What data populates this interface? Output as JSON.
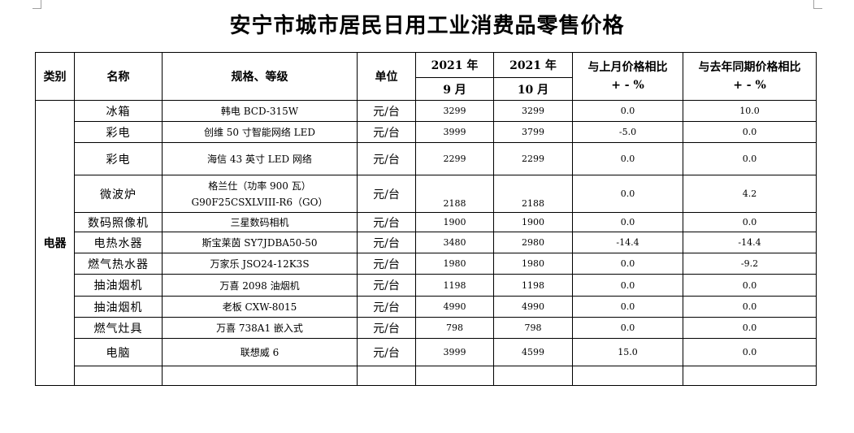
{
  "title": "安宁市城市居民日用工业消费品零售价格",
  "headers": {
    "category": "类别",
    "name": "名称",
    "spec": "规格、等级",
    "unit": "单位",
    "prev_year": "2021 年",
    "prev_month": "9 月",
    "cur_year": "2021 年",
    "cur_month": "10 月",
    "mom_l1": "与上月价格相比",
    "mom_l2": "+ - %",
    "yoy_l1": "与去年同期价格相比",
    "yoy_l2": "+ - %"
  },
  "category": "电器",
  "rows": [
    {
      "name": "冰箱",
      "spec": "韩电 BCD-315W",
      "spec2": "",
      "unit": "元/台",
      "prev": "3299",
      "cur": "3299",
      "mom": "0.0",
      "yoy": "10.0"
    },
    {
      "name": "彩电",
      "spec": "创维 50 寸智能网络 LED",
      "spec2": "",
      "unit": "元/台",
      "prev": "3999",
      "cur": "3799",
      "mom": "-5.0",
      "yoy": "0.0"
    },
    {
      "name": "彩电",
      "spec": "海信 43 英寸 LED 网络",
      "spec2": "",
      "unit": "元/台",
      "prev": "2299",
      "cur": "2299",
      "mom": "0.0",
      "yoy": "0.0"
    },
    {
      "name": "微波炉",
      "spec": "格兰仕（功率 900 瓦）",
      "spec2": "G90F25CSXLVIII-R6（GO）",
      "unit": "元/台",
      "prev": "2188",
      "cur": "2188",
      "mom": "0.0",
      "yoy": "4.2"
    },
    {
      "name": "数码照像机",
      "spec": "三星数码相机",
      "spec2": "",
      "unit": "元/台",
      "prev": "1900",
      "cur": "1900",
      "mom": "0.0",
      "yoy": "0.0"
    },
    {
      "name": "电热水器",
      "spec": "斯宝莱茵 SY7JDBA50-50",
      "spec2": "",
      "unit": "元/台",
      "prev": "3480",
      "cur": "2980",
      "mom": "-14.4",
      "yoy": "-14.4"
    },
    {
      "name": "燃气热水器",
      "spec": "万家乐 JSO24-12K3S",
      "spec2": "",
      "unit": "元/台",
      "prev": "1980",
      "cur": "1980",
      "mom": "0.0",
      "yoy": "-9.2"
    },
    {
      "name": "抽油烟机",
      "spec": "万喜 2098 油烟机",
      "spec2": "",
      "unit": "元/台",
      "prev": "1198",
      "cur": "1198",
      "mom": "0.0",
      "yoy": "0.0"
    },
    {
      "name": "抽油烟机",
      "spec": "老板 CXW-8015",
      "spec2": "",
      "unit": "元/台",
      "prev": "4990",
      "cur": "4990",
      "mom": "0.0",
      "yoy": "0.0"
    },
    {
      "name": "燃气灶具",
      "spec": "万喜 738A1 嵌入式",
      "spec2": "",
      "unit": "元/台",
      "prev": "798",
      "cur": "798",
      "mom": "0.0",
      "yoy": "0.0"
    },
    {
      "name": "电脑",
      "spec": "联想威 6",
      "spec2": "",
      "unit": "元/台",
      "prev": "3999",
      "cur": "4599",
      "mom": "15.0",
      "yoy": "0.0"
    }
  ]
}
